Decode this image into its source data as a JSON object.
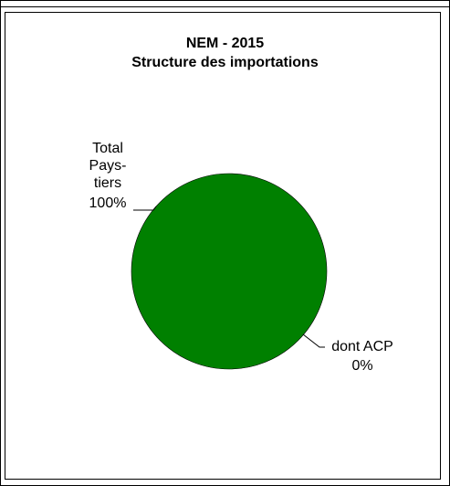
{
  "chart_data": {
    "type": "pie",
    "title_lines": [
      "NEM - 2015",
      "Structure des importations"
    ],
    "slices": [
      {
        "name": "Total Pays-tiers",
        "label_lines": [
          "Total",
          "Pays-",
          "tiers"
        ],
        "value": 100,
        "percent_label": "100%",
        "color": "#008000"
      },
      {
        "name": "dont ACP",
        "label_lines": [
          "dont ACP"
        ],
        "value": 0,
        "percent_label": "0%",
        "color": "#008000"
      }
    ],
    "legend": "none"
  }
}
